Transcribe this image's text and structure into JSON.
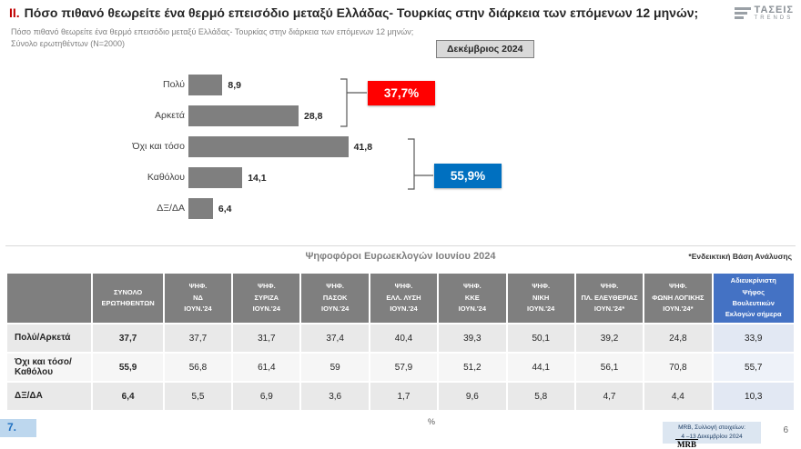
{
  "header": {
    "numeral": "II.",
    "title": "Πόσο πιθανό θεωρείτε ένα θερμό επεισόδιο μεταξύ Ελλάδας- Τουρκίας στην διάρκεια των επόμενων 12 μηνών;",
    "logo": {
      "line1": "ΤΑΣΕΙΣ",
      "line2": "TRENDS"
    }
  },
  "subtitle": {
    "line1": "Πόσο πιθανό θεωρείτε ένα θερμό επεισόδιο μεταξύ Ελλάδας- Τουρκίας στην διάρκεια των επόμενων 12 μηνών;",
    "line2": "Σύνολο ερωτηθέντων (N=2000)"
  },
  "date_badge": "Δεκέμβριος 2024",
  "chart_data": {
    "type": "bar",
    "orientation": "horizontal",
    "categories": [
      "Πολύ",
      "Αρκετά",
      "Όχι και τόσο",
      "Καθόλου",
      "ΔΞ/ΔΑ"
    ],
    "values": [
      8.9,
      28.8,
      41.8,
      14.1,
      6.4
    ],
    "value_labels": [
      "8,9",
      "28,8",
      "41,8",
      "14,1",
      "6,4"
    ],
    "unit": "%",
    "xlim": [
      0,
      50
    ],
    "bar_color": "#7F7F7F",
    "summary_groups": [
      {
        "label": "37,7%",
        "members": [
          "Πολύ",
          "Αρκετά"
        ],
        "color": "#FF0000"
      },
      {
        "label": "55,9%",
        "members": [
          "Όχι και τόσο",
          "Καθόλου"
        ],
        "color": "#0070C0"
      }
    ]
  },
  "table": {
    "title": "Ψηφοφόροι Ευρωεκλογών Ιουνίου 2024",
    "note": "*Ενδεικτική Βάση Ανάλυσης",
    "columns": [
      "",
      "ΣΥΝΟΛΟ\nΕΡΩΤΗΘΕΝΤΩΝ",
      "ΨΗΦ.\nΝΔ\nΙΟΥΝ.'24",
      "ΨΗΦ.\nΣΥΡΙΖΑ\nΙΟΥΝ.'24",
      "ΨΗΦ.\nΠΑΣΟΚ\nΙΟΥΝ.'24",
      "ΨΗΦ.\nΕΛΛ. ΛΥΣΗ\nΙΟΥΝ.'24",
      "ΨΗΦ.\nΚΚΕ\nΙΟΥΝ.'24",
      "ΨΗΦ.\nΝΙΚΗ\nΙΟΥΝ.'24",
      "ΨΗΦ.\nΠΛ. ΕΛΕΥΘΕΡΙΑΣ\nΙΟΥΝ.'24*",
      "ΨΗΦ.\nΦΩΝΗ ΛΟΓΙΚΗΣ\nΙΟΥΝ.'24*",
      "Αδιευκρίνιστη\nΨήφος\nΒουλευτικών\nΕκλογών σήμερα"
    ],
    "rows": [
      {
        "label": "Πολύ/Αρκετά",
        "values": [
          "37,7",
          "37,7",
          "31,7",
          "37,4",
          "40,4",
          "39,3",
          "50,1",
          "39,2",
          "24,8",
          "33,9"
        ]
      },
      {
        "label": "Όχι και τόσο/Καθόλου",
        "values": [
          "55,9",
          "56,8",
          "61,4",
          "59",
          "57,9",
          "51,2",
          "44,1",
          "56,1",
          "70,8",
          "55,7"
        ]
      },
      {
        "label": "ΔΞ/ΔΑ",
        "values": [
          "6,4",
          "5,5",
          "6,9",
          "3,6",
          "1,7",
          "9,6",
          "5,8",
          "4,7",
          "4,4",
          "10,3"
        ]
      }
    ]
  },
  "footer": {
    "slide_number_left": "7.",
    "axis_label": "%",
    "source_line1": "MRB, Συλλογή στοιχείων:",
    "source_line2": "4 –13 Δεκεμβρίου 2024",
    "page_number": "6",
    "logo": "MRB"
  }
}
